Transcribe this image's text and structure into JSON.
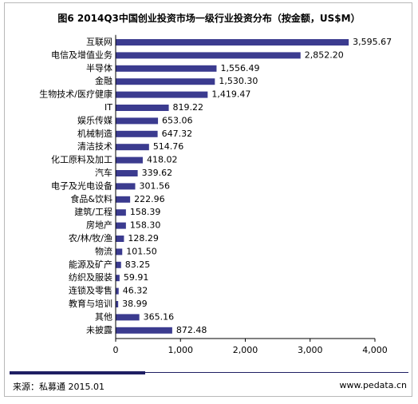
{
  "title": "图6 2014Q3中国创业投资市场一级行业投资分布（按金额，US$M）",
  "source": "来源：私募通 2015.01",
  "website": "www.pedata.cn",
  "colors": {
    "bar": "#3b3b8f",
    "accent": "#1f1f63"
  },
  "chart_data": {
    "type": "bar",
    "orientation": "horizontal",
    "title": "图6 2014Q3中国创业投资市场一级行业投资分布（按金额，US$M）",
    "categories": [
      "互联网",
      "电信及增值业务",
      "半导体",
      "金融",
      "生物技术/医疗健康",
      "IT",
      "娱乐传媒",
      "机械制造",
      "清洁技术",
      "化工原料及加工",
      "汽车",
      "电子及光电设备",
      "食品&饮料",
      "建筑/工程",
      "房地产",
      "农/林/牧/渔",
      "物流",
      "能源及矿产",
      "纺织及服装",
      "连锁及零售",
      "教育与培训",
      "其他",
      "未披露"
    ],
    "values": [
      3595.67,
      2852.2,
      1556.49,
      1530.3,
      1419.47,
      819.22,
      653.06,
      647.32,
      514.76,
      418.02,
      339.62,
      301.56,
      222.96,
      158.39,
      158.3,
      128.29,
      101.5,
      83.25,
      59.91,
      46.32,
      38.99,
      365.16,
      872.48
    ],
    "value_labels": [
      "3,595.67",
      "2,852.20",
      "1,556.49",
      "1,530.30",
      "1,419.47",
      "819.22",
      "653.06",
      "647.32",
      "514.76",
      "418.02",
      "339.62",
      "301.56",
      "222.96",
      "158.39",
      "158.30",
      "128.29",
      "101.50",
      "83.25",
      "59.91",
      "46.32",
      "38.99",
      "365.16",
      "872.48"
    ],
    "xlim": [
      0,
      4000
    ],
    "xticks": [
      0,
      1000,
      2000,
      3000,
      4000
    ],
    "xtick_labels": [
      "0",
      "1,000",
      "2,000",
      "3,000",
      "4,000"
    ],
    "grid": false,
    "legend": "none"
  }
}
